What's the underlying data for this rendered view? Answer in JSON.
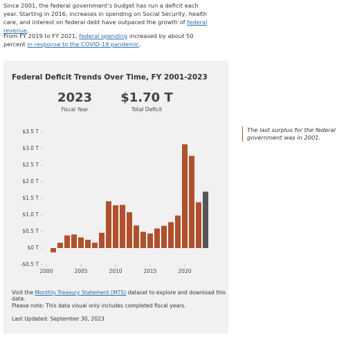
{
  "intro": {
    "p1": [
      "Since 2001, the federal government’s budget has run a deficit each year. Starting in 2016, increases in spending on Social Security, health care, and interest on federal debt have outpaced the growth of ",
      "federal revenue",
      "."
    ],
    "p2": [
      "From FY 2019 to FY 2021, ",
      "federal spending",
      " increased by about 50 percent ",
      "in response to the COVID-19 pandemic",
      "."
    ]
  },
  "chart_data": {
    "type": "bar",
    "title": "Federal Deficit Trends Over Time, FY 2001-2023",
    "summary": {
      "year": "2023",
      "year_label": "Fiscal Year",
      "value": "$1.70 T",
      "value_label": "Total Deficit"
    },
    "x": [
      2001,
      2002,
      2003,
      2004,
      2005,
      2006,
      2007,
      2008,
      2009,
      2010,
      2011,
      2012,
      2013,
      2014,
      2015,
      2016,
      2017,
      2018,
      2019,
      2020,
      2021,
      2022,
      2023
    ],
    "values": [
      -0.13,
      0.16,
      0.38,
      0.41,
      0.32,
      0.25,
      0.16,
      0.46,
      1.41,
      1.29,
      1.3,
      1.08,
      0.68,
      0.49,
      0.44,
      0.59,
      0.67,
      0.78,
      0.98,
      3.13,
      2.78,
      1.38,
      1.7
    ],
    "colors": [
      "#b0502c",
      "#b0502c",
      "#b0502c",
      "#b0502c",
      "#b0502c",
      "#b0502c",
      "#b0502c",
      "#b0502c",
      "#b0502c",
      "#b0502c",
      "#b0502c",
      "#b0502c",
      "#b0502c",
      "#b0502c",
      "#b0502c",
      "#b0502c",
      "#b0502c",
      "#b0502c",
      "#b0502c",
      "#b0502c",
      "#b0502c",
      "#b0502c",
      "#555555"
    ],
    "xlim": [
      1999.5,
      2023.5
    ],
    "xticks": [
      2000,
      2005,
      2010,
      2015,
      2020
    ],
    "ylim": [
      -0.5,
      3.5
    ],
    "yticks": [
      {
        "value": -0.5,
        "label": "-$0.5 T"
      },
      {
        "value": 0,
        "label": "$0 T"
      },
      {
        "value": 0.5,
        "label": "$0.5 T"
      },
      {
        "value": 1,
        "label": "$1.0 T"
      },
      {
        "value": 1.5,
        "label": "$1.5 T"
      },
      {
        "value": 2,
        "label": "$2.0 T"
      },
      {
        "value": 2.5,
        "label": "$2.5 T"
      },
      {
        "value": 3,
        "label": "$3.0 T"
      },
      {
        "value": 3.5,
        "label": "$3.5 T"
      }
    ],
    "grid": false,
    "note": "The last surplus for the federal government was in 2001.",
    "footer": {
      "visit": [
        "Visit the ",
        "Monthly Treasury Statement (MTS)",
        " dataset to explore and download this data."
      ],
      "disclaimer": "Please note: This data visual only includes completed fiscal years.",
      "updated": "Last Updated: September 30, 2023"
    }
  }
}
